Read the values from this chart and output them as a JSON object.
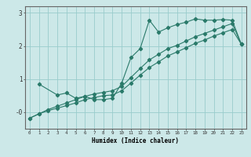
{
  "xlabel": "Humidex (Indice chaleur)",
  "background_color": "#cce8e8",
  "grid_color": "#99cccc",
  "line_color": "#2a7a6a",
  "x_values": [
    0,
    1,
    2,
    3,
    4,
    5,
    6,
    7,
    8,
    9,
    10,
    11,
    12,
    13,
    14,
    15,
    16,
    17,
    18,
    19,
    20,
    21,
    22,
    23
  ],
  "line_jagged": [
    null,
    0.85,
    null,
    0.52,
    0.58,
    0.42,
    0.48,
    0.38,
    0.38,
    0.42,
    0.88,
    1.65,
    1.92,
    2.78,
    2.42,
    2.55,
    2.65,
    2.72,
    2.82,
    2.78,
    2.78,
    2.8,
    2.78,
    2.05
  ],
  "line_upper": [
    -0.18,
    -0.05,
    0.08,
    0.18,
    0.28,
    0.38,
    0.48,
    0.55,
    0.6,
    0.65,
    0.78,
    1.05,
    1.32,
    1.58,
    1.75,
    1.92,
    2.02,
    2.15,
    2.28,
    2.38,
    2.48,
    2.58,
    2.68,
    2.05
  ],
  "line_lower": [
    -0.18,
    -0.05,
    0.05,
    0.12,
    0.2,
    0.28,
    0.38,
    0.44,
    0.5,
    0.52,
    0.65,
    0.88,
    1.12,
    1.35,
    1.52,
    1.7,
    1.82,
    1.95,
    2.08,
    2.18,
    2.3,
    2.4,
    2.5,
    2.05
  ],
  "ylim": [
    -0.5,
    3.2
  ],
  "xlim": [
    -0.5,
    23.5
  ],
  "ytick_vals": [
    0,
    1,
    2,
    3
  ],
  "ytick_labels": [
    "-0",
    "1",
    "2",
    "3"
  ],
  "xtick_vals": [
    0,
    1,
    2,
    3,
    4,
    5,
    6,
    7,
    8,
    9,
    10,
    11,
    12,
    13,
    14,
    15,
    16,
    17,
    18,
    19,
    20,
    21,
    22,
    23
  ],
  "xtick_labels": [
    "0",
    "1",
    "2",
    "3",
    "4",
    "5",
    "6",
    "7",
    "8",
    "9",
    "10",
    "11",
    "12",
    "13",
    "14",
    "15",
    "16",
    "17",
    "18",
    "19",
    "20",
    "21",
    "22",
    "23"
  ]
}
